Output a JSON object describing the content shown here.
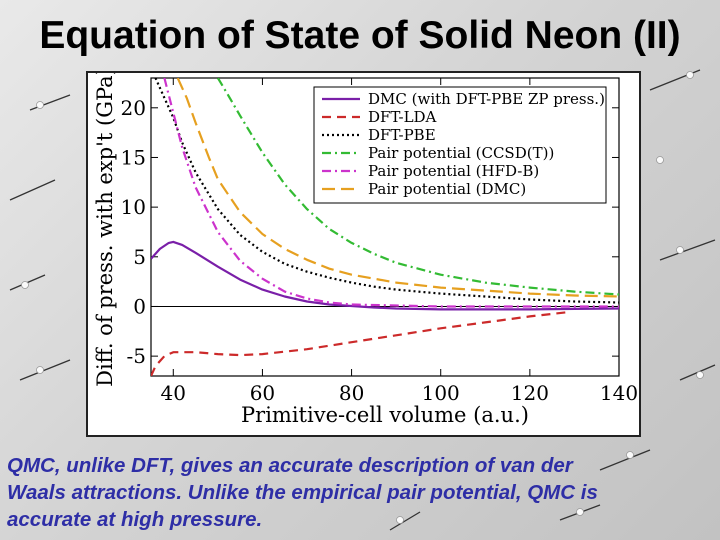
{
  "slide": {
    "title": "Equation of State of Solid Neon (II)",
    "caption_lines": [
      "QMC, unlike DFT, gives an accurate description of van der",
      "Waals attractions. Unlike the empirical pair potential, QMC is",
      "accurate at high pressure."
    ],
    "caption_color": "#2e2ea6"
  },
  "chart_data": {
    "type": "line",
    "title": "",
    "xlabel": "Primitive-cell volume (a.u.)",
    "ylabel": "Diff. of press. with exp't (GPa)",
    "xlim": [
      35,
      140
    ],
    "ylim": [
      -7,
      23
    ],
    "xticks": [
      40,
      60,
      80,
      100,
      120,
      140
    ],
    "yticks": [
      -5,
      0,
      5,
      10,
      15,
      20
    ],
    "zero_line": true,
    "grid": false,
    "legend_position": "top-right",
    "series": [
      {
        "name": "DMC (with DFT-PBE ZP press.)",
        "color": "#7a1fa8",
        "dash": "solid",
        "points": [
          [
            35,
            4.8
          ],
          [
            37,
            5.8
          ],
          [
            39,
            6.4
          ],
          [
            40,
            6.5
          ],
          [
            42,
            6.2
          ],
          [
            45,
            5.4
          ],
          [
            50,
            4.0
          ],
          [
            55,
            2.7
          ],
          [
            60,
            1.7
          ],
          [
            65,
            1.0
          ],
          [
            70,
            0.5
          ],
          [
            75,
            0.2
          ],
          [
            80,
            0.05
          ],
          [
            85,
            -0.1
          ],
          [
            90,
            -0.2
          ],
          [
            100,
            -0.3
          ],
          [
            110,
            -0.3
          ],
          [
            120,
            -0.3
          ],
          [
            130,
            -0.25
          ],
          [
            140,
            -0.2
          ]
        ]
      },
      {
        "name": "DFT-LDA",
        "color": "#cc2a2a",
        "dash": "dashed",
        "points": [
          [
            35,
            -7
          ],
          [
            36,
            -6.0
          ],
          [
            38,
            -5.0
          ],
          [
            40,
            -4.6
          ],
          [
            45,
            -4.6
          ],
          [
            50,
            -4.8
          ],
          [
            55,
            -4.9
          ],
          [
            60,
            -4.8
          ],
          [
            70,
            -4.3
          ],
          [
            80,
            -3.6
          ],
          [
            90,
            -2.9
          ],
          [
            100,
            -2.2
          ],
          [
            110,
            -1.6
          ],
          [
            120,
            -1.0
          ],
          [
            128,
            -0.6
          ]
        ]
      },
      {
        "name": "DFT-PBE",
        "color": "#000000",
        "dash": "dotted",
        "points": [
          [
            36,
            23
          ],
          [
            38,
            21.0
          ],
          [
            40,
            19.0
          ],
          [
            42,
            16.5
          ],
          [
            45,
            13.5
          ],
          [
            50,
            9.8
          ],
          [
            55,
            7.2
          ],
          [
            60,
            5.5
          ],
          [
            65,
            4.3
          ],
          [
            70,
            3.5
          ],
          [
            75,
            2.9
          ],
          [
            80,
            2.4
          ],
          [
            85,
            2.0
          ],
          [
            90,
            1.7
          ],
          [
            100,
            1.3
          ],
          [
            110,
            1.0
          ],
          [
            120,
            0.7
          ],
          [
            130,
            0.5
          ],
          [
            140,
            0.4
          ]
        ]
      },
      {
        "name": "Pair potential (CCSD(T))",
        "color": "#33bb33",
        "dash": "dash-dot",
        "points": [
          [
            50,
            23
          ],
          [
            52,
            21.5
          ],
          [
            55,
            19.2
          ],
          [
            60,
            15.5
          ],
          [
            65,
            12.3
          ],
          [
            70,
            9.8
          ],
          [
            75,
            7.8
          ],
          [
            80,
            6.4
          ],
          [
            85,
            5.3
          ],
          [
            90,
            4.4
          ],
          [
            100,
            3.2
          ],
          [
            110,
            2.4
          ],
          [
            120,
            1.9
          ],
          [
            130,
            1.5
          ],
          [
            140,
            1.2
          ]
        ]
      },
      {
        "name": "Pair potential (HFD-B)",
        "color": "#cc33cc",
        "dash": "dash-dot",
        "points": [
          [
            38,
            23
          ],
          [
            40,
            19.5
          ],
          [
            42,
            16.0
          ],
          [
            45,
            12.0
          ],
          [
            50,
            7.5
          ],
          [
            55,
            4.6
          ],
          [
            60,
            2.8
          ],
          [
            65,
            1.5
          ],
          [
            70,
            0.8
          ],
          [
            75,
            0.4
          ],
          [
            80,
            0.2
          ],
          [
            90,
            0.1
          ],
          [
            100,
            0.0
          ],
          [
            120,
            0.0
          ],
          [
            140,
            0.0
          ]
        ]
      },
      {
        "name": "Pair potential (DMC)",
        "color": "#e6a020",
        "dash": "long-dash",
        "points": [
          [
            41,
            23
          ],
          [
            43,
            21.0
          ],
          [
            45,
            18.5
          ],
          [
            48,
            15.0
          ],
          [
            50,
            12.8
          ],
          [
            55,
            9.5
          ],
          [
            60,
            7.3
          ],
          [
            65,
            5.8
          ],
          [
            70,
            4.7
          ],
          [
            75,
            3.8
          ],
          [
            80,
            3.2
          ],
          [
            90,
            2.4
          ],
          [
            100,
            1.9
          ],
          [
            110,
            1.6
          ],
          [
            120,
            1.3
          ],
          [
            130,
            1.1
          ],
          [
            140,
            1.0
          ]
        ]
      }
    ]
  }
}
